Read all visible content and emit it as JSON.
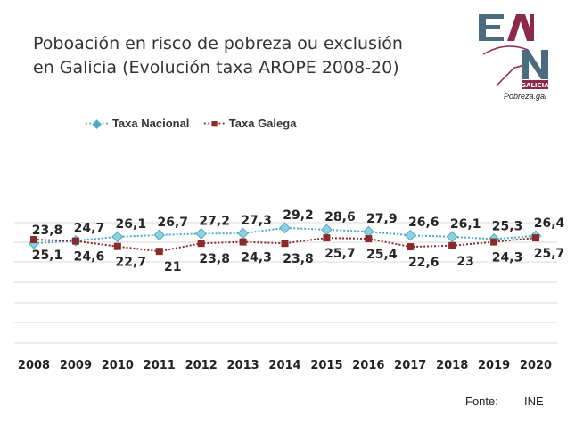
{
  "chart_data": {
    "type": "line",
    "title": "Poboación en risco de pobreza ou exclusión en Galicia (Evolución taxa AROPE 2008-20)",
    "title_lines": [
      "Poboación en risco de pobreza ou exclusión",
      "en Galicia (Evolución taxa AROPE 2008-20)"
    ],
    "categories": [
      "2008",
      "2009",
      "2010",
      "2011",
      "2012",
      "2013",
      "2014",
      "2015",
      "2016",
      "2017",
      "2018",
      "2019",
      "2020"
    ],
    "series": [
      {
        "name": "Taxa Nacional",
        "color": "#4bacc6",
        "values": [
          23.8,
          24.7,
          26.1,
          26.7,
          27.2,
          27.3,
          29.2,
          28.6,
          27.9,
          26.6,
          26.1,
          25.3,
          26.4
        ],
        "labels": [
          "23,8",
          "24,7",
          "26,1",
          "26,7",
          "27,2",
          "27,3",
          "29,2",
          "28,6",
          "27,9",
          "26,6",
          "26,1",
          "25,3",
          "26,4"
        ]
      },
      {
        "name": "Taxa Galega",
        "color": "#8b2a2a",
        "values": [
          25.1,
          24.6,
          22.7,
          21,
          23.8,
          24.3,
          23.8,
          25.7,
          25.4,
          22.6,
          23,
          24.3,
          25.7
        ],
        "labels": [
          "25,1",
          "24,6",
          "22,7",
          "21",
          "23,8",
          "24,3",
          "23,8",
          "25,7",
          "25,4",
          "22,6",
          "23",
          "24,3",
          "25,7"
        ]
      }
    ],
    "legend_position": "top-left",
    "grid": true
  },
  "logo": {
    "text": "EAPN GALICIA",
    "site": "Pobreza.gal"
  },
  "source": {
    "label": "Fonte:",
    "value": "INE"
  }
}
